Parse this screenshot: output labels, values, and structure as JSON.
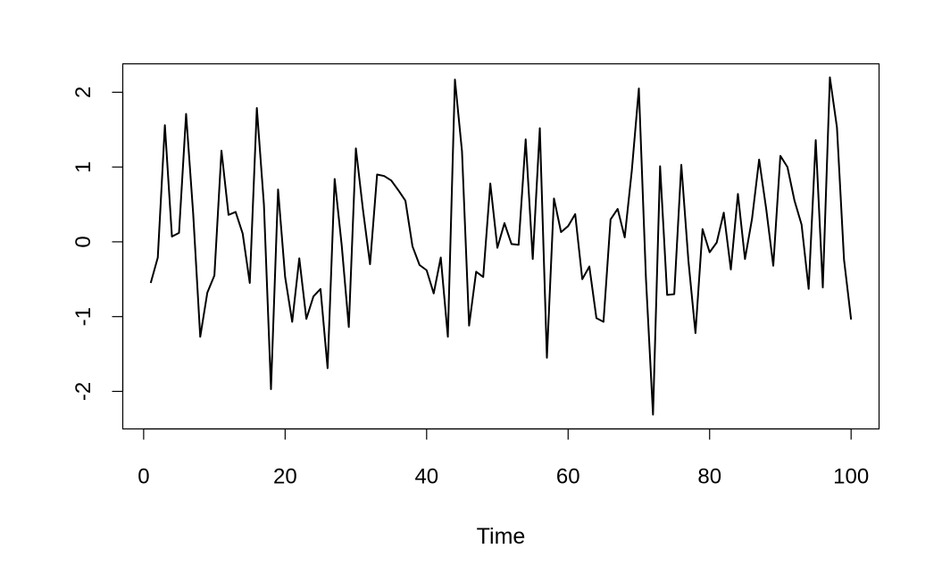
{
  "chart_data": {
    "type": "line",
    "title": "",
    "xlabel": "Time",
    "ylabel": "",
    "xlim": [
      1,
      100
    ],
    "ylim": [
      -2.3,
      2.2
    ],
    "x_ticks": [
      0,
      20,
      40,
      60,
      80,
      100
    ],
    "x_tick_labels": [
      "0",
      "20",
      "40",
      "60",
      "80",
      "100"
    ],
    "y_ticks": [
      -2,
      -1,
      0,
      1,
      2
    ],
    "y_tick_labels": [
      "-2",
      "-1",
      "0",
      "1",
      "2"
    ],
    "grid": false,
    "line_color": "#000000",
    "series": [
      {
        "x_start": 1,
        "x_step": 1,
        "values": [
          -0.55,
          -0.21,
          1.56,
          0.07,
          0.12,
          1.71,
          0.38,
          -1.27,
          -0.68,
          -0.45,
          1.22,
          0.36,
          0.4,
          0.11,
          -0.55,
          1.79,
          0.5,
          -1.97,
          0.7,
          -0.47,
          -1.07,
          -0.22,
          -1.03,
          -0.73,
          -0.63,
          -1.69,
          0.84,
          -0.05,
          -1.14,
          1.25,
          0.43,
          -0.3,
          0.9,
          0.88,
          0.82,
          0.69,
          0.55,
          -0.06,
          -0.31,
          -0.38,
          -0.69,
          -0.21,
          -1.27,
          2.17,
          1.21,
          -1.12,
          -0.4,
          -0.47,
          0.78,
          -0.08,
          0.25,
          -0.03,
          -0.04,
          1.37,
          -0.23,
          1.52,
          -1.55,
          0.58,
          0.13,
          0.21,
          0.37,
          -0.5,
          -0.33,
          -1.02,
          -1.07,
          0.3,
          0.44,
          0.06,
          0.95,
          2.05,
          -0.49,
          -2.31,
          1.01,
          -0.71,
          -0.7,
          1.03,
          -0.25,
          -1.22,
          0.17,
          -0.14,
          -0.01,
          0.39,
          -0.37,
          0.64,
          -0.23,
          0.31,
          1.1,
          0.44,
          -0.32,
          1.15,
          1.0,
          0.55,
          0.23,
          -0.63,
          1.36,
          -0.61,
          2.2,
          1.53,
          -0.24,
          -1.04
        ]
      }
    ]
  }
}
